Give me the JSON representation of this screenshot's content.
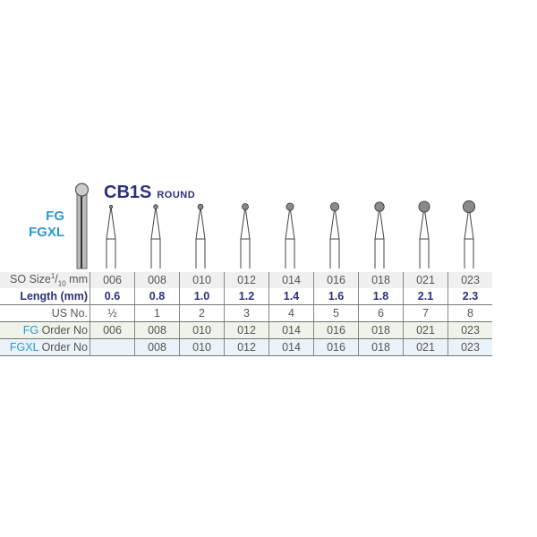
{
  "header": {
    "model": "CB1S",
    "shape": "ROUND",
    "systems": [
      "FG",
      "FGXL"
    ]
  },
  "table": {
    "labels": {
      "iso_pre": "SO Size",
      "iso_frac_num": "1",
      "iso_frac_den": "10",
      "iso_unit": " mm",
      "length": "Length (mm)",
      "us": "US No.",
      "fg_prefix": "FG",
      "fg_suffix": " Order No",
      "fgxl_prefix": "FGXL",
      "fgxl_suffix": " Order No"
    },
    "iso": [
      "006",
      "008",
      "010",
      "012",
      "014",
      "016",
      "018",
      "021",
      "023"
    ],
    "length": [
      "0.6",
      "0.8",
      "1.0",
      "1.2",
      "1.4",
      "1.6",
      "1.8",
      "2.1",
      "2.3"
    ],
    "us": [
      "½",
      "1",
      "2",
      "3",
      "4",
      "5",
      "6",
      "7",
      "8"
    ],
    "fg": [
      "006",
      "008",
      "010",
      "012",
      "014",
      "016",
      "018",
      "021",
      "023"
    ],
    "fgxl": [
      "",
      "008",
      "010",
      "012",
      "014",
      "016",
      "018",
      "021",
      "023"
    ]
  },
  "colors": {
    "navy": "#2b2f7d",
    "blue": "#2a97d6",
    "bur_head": "#7a7a7a"
  }
}
